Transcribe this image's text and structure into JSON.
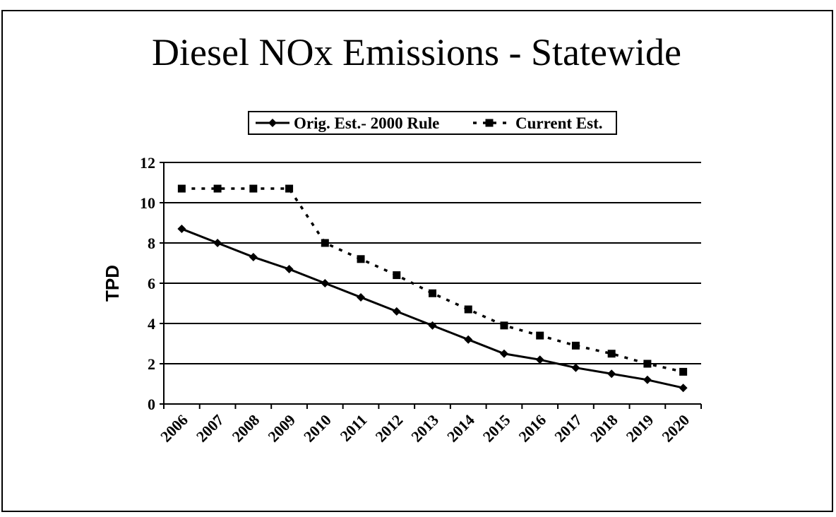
{
  "chart_data": {
    "type": "line",
    "title": "Diesel NOx Emissions - Statewide",
    "y_label": "TPD",
    "categories": [
      "2006",
      "2007",
      "2008",
      "2009",
      "2010",
      "2011",
      "2012",
      "2013",
      "2014",
      "2015",
      "2016",
      "2017",
      "2018",
      "2019",
      "2020"
    ],
    "series": [
      {
        "name": "Orig. Est.- 2000 Rule",
        "color": "#000000",
        "marker": "diamond",
        "dash": "solid",
        "values": [
          8.7,
          8.0,
          7.3,
          6.7,
          6.0,
          5.3,
          4.6,
          3.9,
          3.2,
          2.5,
          2.2,
          1.8,
          1.5,
          1.2,
          0.8
        ]
      },
      {
        "name": "Current Est.",
        "color": "#000000",
        "marker": "square",
        "dash": "dotted",
        "values": [
          10.7,
          10.7,
          10.7,
          10.7,
          8.0,
          7.2,
          6.4,
          5.5,
          4.7,
          3.9,
          3.4,
          2.9,
          2.5,
          2.0,
          1.6
        ]
      }
    ],
    "ylim": [
      0,
      12
    ],
    "yticks": [
      0,
      2,
      4,
      6,
      8,
      10,
      12
    ],
    "grid": true,
    "legend": "top"
  }
}
